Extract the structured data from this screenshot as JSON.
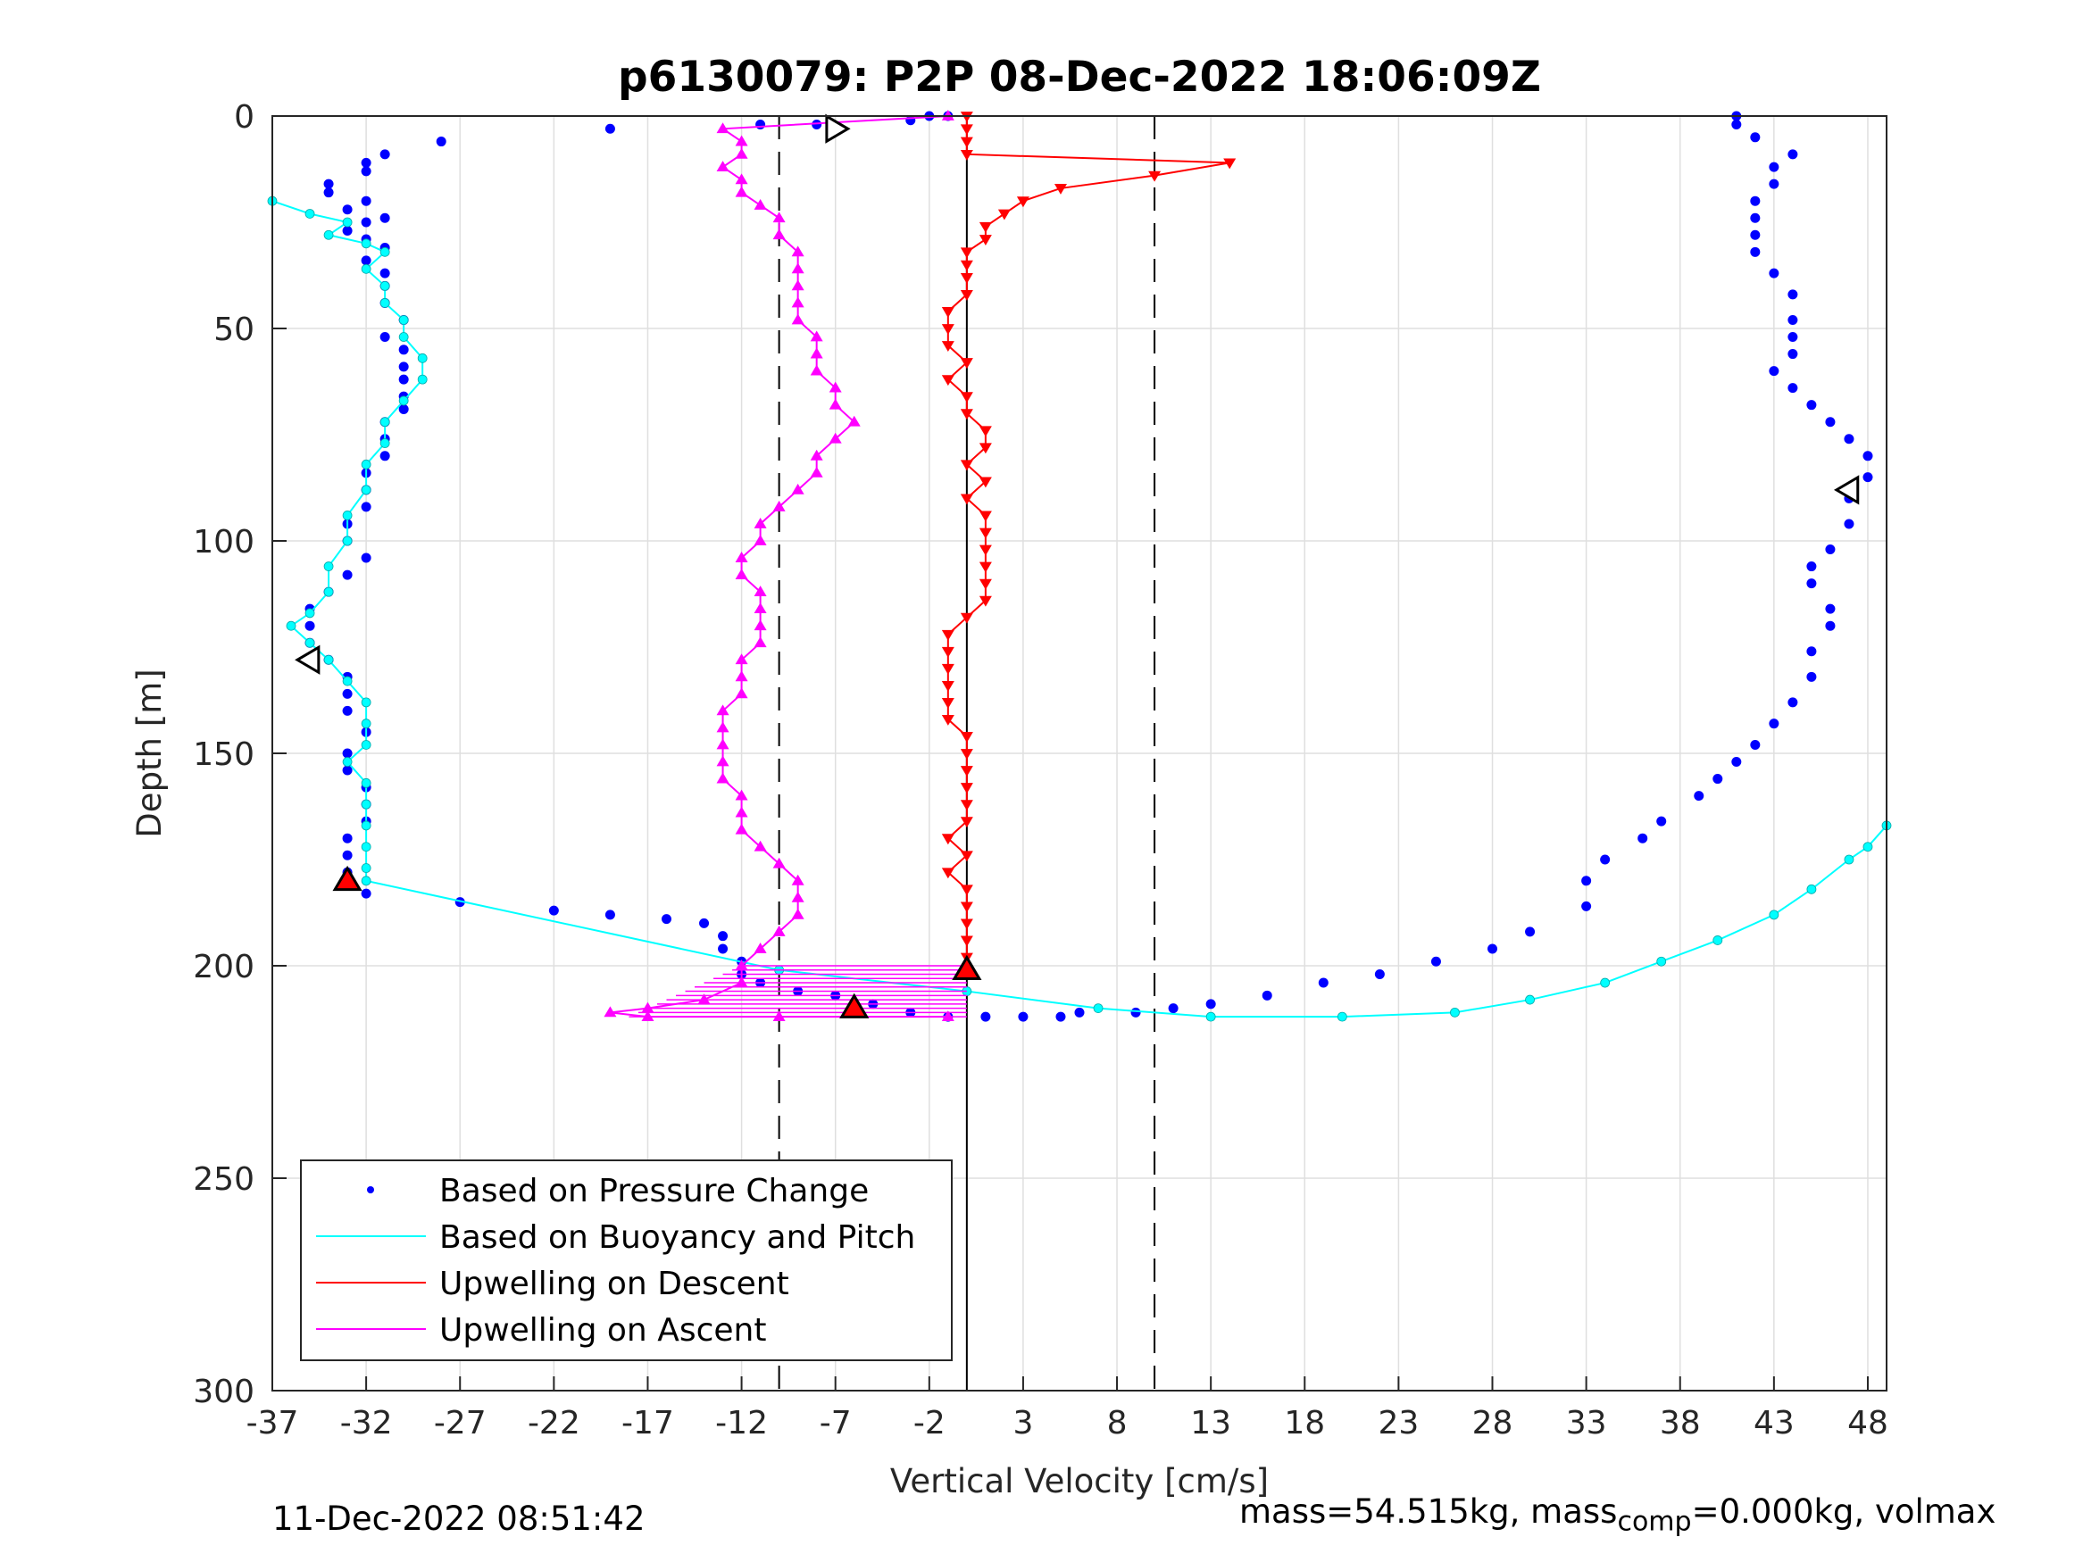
{
  "chart_data": {
    "type": "scatter",
    "title": "p6130079: P2P 08-Dec-2022 18:06:09Z",
    "xlabel": "Vertical Velocity [cm/s]",
    "ylabel": "Depth [m]",
    "xlim": [
      -37,
      49
    ],
    "ylim": [
      0,
      300
    ],
    "y_reversed": true,
    "grid": true,
    "xticks": [
      -37,
      -32,
      -27,
      -22,
      -17,
      -12,
      -7,
      -2,
      3,
      8,
      13,
      18,
      23,
      28,
      33,
      38,
      43,
      48
    ],
    "yticks": [
      0,
      50,
      100,
      150,
      200,
      250,
      300
    ],
    "reference_lines": {
      "solid_x": [
        0
      ],
      "dashed_x": [
        -10,
        10
      ]
    },
    "legend": {
      "placement": "bottom-left",
      "entries": [
        {
          "label": "Based on Pressure Change",
          "color": "#0000ff",
          "style": "dots"
        },
        {
          "label": "Based on Buoyancy and Pitch",
          "color": "#00ffff",
          "style": "line"
        },
        {
          "label": "Upwelling on Descent",
          "color": "#ff0000",
          "style": "line"
        },
        {
          "label": "Upwelling on Ascent",
          "color": "#ff00ff",
          "style": "line"
        }
      ]
    },
    "series": [
      {
        "key": "pressure",
        "color": "#0000ff",
        "style": "dots",
        "points": [
          [
            -2,
            0
          ],
          [
            -1,
            0
          ],
          [
            -3,
            1
          ],
          [
            -8,
            2
          ],
          [
            -11,
            2
          ],
          [
            -19,
            3
          ],
          [
            -28,
            6
          ],
          [
            -31,
            9
          ],
          [
            -32,
            11
          ],
          [
            -32,
            13
          ],
          [
            -34,
            16
          ],
          [
            -34,
            18
          ],
          [
            -32,
            20
          ],
          [
            -33,
            22
          ],
          [
            -31,
            24
          ],
          [
            -32,
            25
          ],
          [
            -33,
            27
          ],
          [
            -32,
            29
          ],
          [
            -31,
            31
          ],
          [
            -32,
            34
          ],
          [
            -31,
            37
          ],
          [
            -31,
            40
          ],
          [
            -31,
            44
          ],
          [
            -30,
            48
          ],
          [
            -31,
            52
          ],
          [
            -30,
            55
          ],
          [
            -30,
            59
          ],
          [
            -30,
            62
          ],
          [
            -30,
            66
          ],
          [
            -30,
            69
          ],
          [
            -31,
            72
          ],
          [
            -31,
            76
          ],
          [
            -31,
            80
          ],
          [
            -32,
            84
          ],
          [
            -32,
            88
          ],
          [
            -32,
            92
          ],
          [
            -33,
            96
          ],
          [
            -33,
            100
          ],
          [
            -32,
            104
          ],
          [
            -33,
            108
          ],
          [
            -34,
            112
          ],
          [
            -35,
            116
          ],
          [
            -35,
            120
          ],
          [
            -35,
            124
          ],
          [
            -34,
            128
          ],
          [
            -33,
            132
          ],
          [
            -33,
            136
          ],
          [
            -33,
            140
          ],
          [
            -32,
            145
          ],
          [
            -33,
            150
          ],
          [
            -33,
            154
          ],
          [
            -32,
            158
          ],
          [
            -32,
            162
          ],
          [
            -32,
            166
          ],
          [
            -33,
            170
          ],
          [
            -33,
            174
          ],
          [
            -33,
            178
          ],
          [
            -32,
            183
          ],
          [
            -27,
            185
          ],
          [
            -22,
            187
          ],
          [
            -19,
            188
          ],
          [
            -16,
            189
          ],
          [
            -14,
            190
          ],
          [
            -13,
            193
          ],
          [
            -13,
            196
          ],
          [
            -12,
            199
          ],
          [
            -12,
            202
          ],
          [
            -11,
            204
          ],
          [
            -9,
            206
          ],
          [
            -7,
            207
          ],
          [
            -5,
            209
          ],
          [
            -3,
            211
          ],
          [
            -1,
            212
          ],
          [
            1,
            212
          ],
          [
            3,
            212
          ],
          [
            5,
            212
          ],
          [
            6,
            211
          ],
          [
            9,
            211
          ],
          [
            11,
            210
          ],
          [
            13,
            209
          ],
          [
            16,
            207
          ],
          [
            19,
            204
          ],
          [
            22,
            202
          ],
          [
            25,
            199
          ],
          [
            28,
            196
          ],
          [
            30,
            192
          ],
          [
            33,
            186
          ],
          [
            33,
            180
          ],
          [
            34,
            175
          ],
          [
            36,
            170
          ],
          [
            37,
            166
          ],
          [
            39,
            160
          ],
          [
            40,
            156
          ],
          [
            41,
            152
          ],
          [
            42,
            148
          ],
          [
            43,
            143
          ],
          [
            44,
            138
          ],
          [
            45,
            132
          ],
          [
            45,
            126
          ],
          [
            46,
            120
          ],
          [
            46,
            116
          ],
          [
            45,
            110
          ],
          [
            45,
            106
          ],
          [
            46,
            102
          ],
          [
            47,
            96
          ],
          [
            47,
            90
          ],
          [
            48,
            85
          ],
          [
            48,
            80
          ],
          [
            47,
            76
          ],
          [
            46,
            72
          ],
          [
            45,
            68
          ],
          [
            44,
            64
          ],
          [
            43,
            60
          ],
          [
            44,
            56
          ],
          [
            44,
            52
          ],
          [
            44,
            48
          ],
          [
            44,
            42
          ],
          [
            43,
            37
          ],
          [
            42,
            32
          ],
          [
            42,
            28
          ],
          [
            42,
            24
          ],
          [
            42,
            20
          ],
          [
            43,
            16
          ],
          [
            43,
            12
          ],
          [
            44,
            9
          ],
          [
            42,
            5
          ],
          [
            41,
            2
          ],
          [
            41,
            0
          ]
        ]
      },
      {
        "key": "buoyancy",
        "color": "#00ffff",
        "style": "line-dots",
        "points": [
          [
            -37,
            20
          ],
          [
            -35,
            23
          ],
          [
            -33,
            25
          ],
          [
            -34,
            28
          ],
          [
            -32,
            30
          ],
          [
            -31,
            32
          ],
          [
            -32,
            36
          ],
          [
            -31,
            40
          ],
          [
            -31,
            44
          ],
          [
            -30,
            48
          ],
          [
            -30,
            52
          ],
          [
            -29,
            57
          ],
          [
            -29,
            62
          ],
          [
            -30,
            67
          ],
          [
            -31,
            72
          ],
          [
            -31,
            77
          ],
          [
            -32,
            82
          ],
          [
            -32,
            88
          ],
          [
            -33,
            94
          ],
          [
            -33,
            100
          ],
          [
            -34,
            106
          ],
          [
            -34,
            112
          ],
          [
            -35,
            117
          ],
          [
            -36,
            120
          ],
          [
            -35,
            124
          ],
          [
            -34,
            128
          ],
          [
            -33,
            133
          ],
          [
            -32,
            138
          ],
          [
            -32,
            143
          ],
          [
            -32,
            148
          ],
          [
            -33,
            152
          ],
          [
            -32,
            157
          ],
          [
            -32,
            162
          ],
          [
            -32,
            167
          ],
          [
            -32,
            172
          ],
          [
            -32,
            177
          ],
          [
            -32,
            180
          ],
          [
            -10,
            201
          ],
          [
            0,
            206
          ],
          [
            7,
            210
          ],
          [
            13,
            212
          ],
          [
            20,
            212
          ],
          [
            26,
            211
          ],
          [
            30,
            208
          ],
          [
            34,
            204
          ],
          [
            37,
            199
          ],
          [
            40,
            194
          ],
          [
            43,
            188
          ],
          [
            45,
            182
          ],
          [
            47,
            175
          ],
          [
            48,
            172
          ],
          [
            49,
            167
          ]
        ]
      },
      {
        "key": "descent",
        "color": "#ff0000",
        "style": "line-down-triangles",
        "points": [
          [
            0,
            0
          ],
          [
            0,
            3
          ],
          [
            0,
            6
          ],
          [
            0,
            9
          ],
          [
            14,
            11
          ],
          [
            10,
            14
          ],
          [
            5,
            17
          ],
          [
            3,
            20
          ],
          [
            2,
            23
          ],
          [
            1,
            26
          ],
          [
            1,
            29
          ],
          [
            0,
            32
          ],
          [
            0,
            35
          ],
          [
            0,
            38
          ],
          [
            0,
            42
          ],
          [
            -1,
            46
          ],
          [
            -1,
            50
          ],
          [
            -1,
            54
          ],
          [
            0,
            58
          ],
          [
            -1,
            62
          ],
          [
            0,
            66
          ],
          [
            0,
            70
          ],
          [
            1,
            74
          ],
          [
            1,
            78
          ],
          [
            0,
            82
          ],
          [
            1,
            86
          ],
          [
            0,
            90
          ],
          [
            1,
            94
          ],
          [
            1,
            98
          ],
          [
            1,
            102
          ],
          [
            1,
            106
          ],
          [
            1,
            110
          ],
          [
            1,
            114
          ],
          [
            0,
            118
          ],
          [
            -1,
            122
          ],
          [
            -1,
            126
          ],
          [
            -1,
            130
          ],
          [
            -1,
            134
          ],
          [
            -1,
            138
          ],
          [
            -1,
            142
          ],
          [
            0,
            146
          ],
          [
            0,
            150
          ],
          [
            0,
            154
          ],
          [
            0,
            158
          ],
          [
            0,
            162
          ],
          [
            0,
            166
          ],
          [
            -1,
            170
          ],
          [
            0,
            174
          ],
          [
            -1,
            178
          ],
          [
            0,
            182
          ],
          [
            0,
            186
          ],
          [
            0,
            190
          ],
          [
            0,
            194
          ],
          [
            0,
            198
          ],
          [
            0,
            201
          ]
        ]
      },
      {
        "key": "ascent",
        "color": "#ff00ff",
        "style": "line-up-triangles",
        "points": [
          [
            -1,
            0
          ],
          [
            -13,
            3
          ],
          [
            -12,
            6
          ],
          [
            -12,
            9
          ],
          [
            -13,
            12
          ],
          [
            -12,
            15
          ],
          [
            -12,
            18
          ],
          [
            -11,
            21
          ],
          [
            -10,
            24
          ],
          [
            -10,
            28
          ],
          [
            -9,
            32
          ],
          [
            -9,
            36
          ],
          [
            -9,
            40
          ],
          [
            -9,
            44
          ],
          [
            -9,
            48
          ],
          [
            -8,
            52
          ],
          [
            -8,
            56
          ],
          [
            -8,
            60
          ],
          [
            -7,
            64
          ],
          [
            -7,
            68
          ],
          [
            -6,
            72
          ],
          [
            -7,
            76
          ],
          [
            -8,
            80
          ],
          [
            -8,
            84
          ],
          [
            -9,
            88
          ],
          [
            -10,
            92
          ],
          [
            -11,
            96
          ],
          [
            -11,
            100
          ],
          [
            -12,
            104
          ],
          [
            -12,
            108
          ],
          [
            -11,
            112
          ],
          [
            -11,
            116
          ],
          [
            -11,
            120
          ],
          [
            -11,
            124
          ],
          [
            -12,
            128
          ],
          [
            -12,
            132
          ],
          [
            -12,
            136
          ],
          [
            -13,
            140
          ],
          [
            -13,
            144
          ],
          [
            -13,
            148
          ],
          [
            -13,
            152
          ],
          [
            -13,
            156
          ],
          [
            -12,
            160
          ],
          [
            -12,
            164
          ],
          [
            -12,
            168
          ],
          [
            -11,
            172
          ],
          [
            -10,
            176
          ],
          [
            -9,
            180
          ],
          [
            -9,
            184
          ],
          [
            -9,
            188
          ],
          [
            -10,
            192
          ],
          [
            -11,
            196
          ],
          [
            -12,
            200
          ],
          [
            -12,
            204
          ],
          [
            -14,
            208
          ],
          [
            -17,
            210
          ],
          [
            -19,
            211
          ],
          [
            -17,
            212
          ],
          [
            -10,
            212
          ],
          [
            -1,
            212
          ]
        ]
      }
    ],
    "markers": [
      {
        "shape": "triangle-right",
        "fill": "#ffffff",
        "x": -7,
        "y": 3
      },
      {
        "shape": "triangle-left",
        "fill": "#ffffff",
        "x": 47,
        "y": 88
      },
      {
        "shape": "triangle-left",
        "fill": "#ffffff",
        "x": -35,
        "y": 128
      },
      {
        "shape": "triangle-up",
        "fill": "#ff0000",
        "x": -33,
        "y": 180
      },
      {
        "shape": "triangle-up",
        "fill": "#ff0000",
        "x": 0,
        "y": 201
      },
      {
        "shape": "triangle-up",
        "fill": "#ff0000",
        "x": -6,
        "y": 210
      }
    ]
  },
  "footer": {
    "timestamp": "11-Dec-2022 08:51:42",
    "mass_prefix": "mass=54.515kg, mass",
    "mass_sub": "comp",
    "mass_suffix": "=0.000kg, volmax"
  }
}
